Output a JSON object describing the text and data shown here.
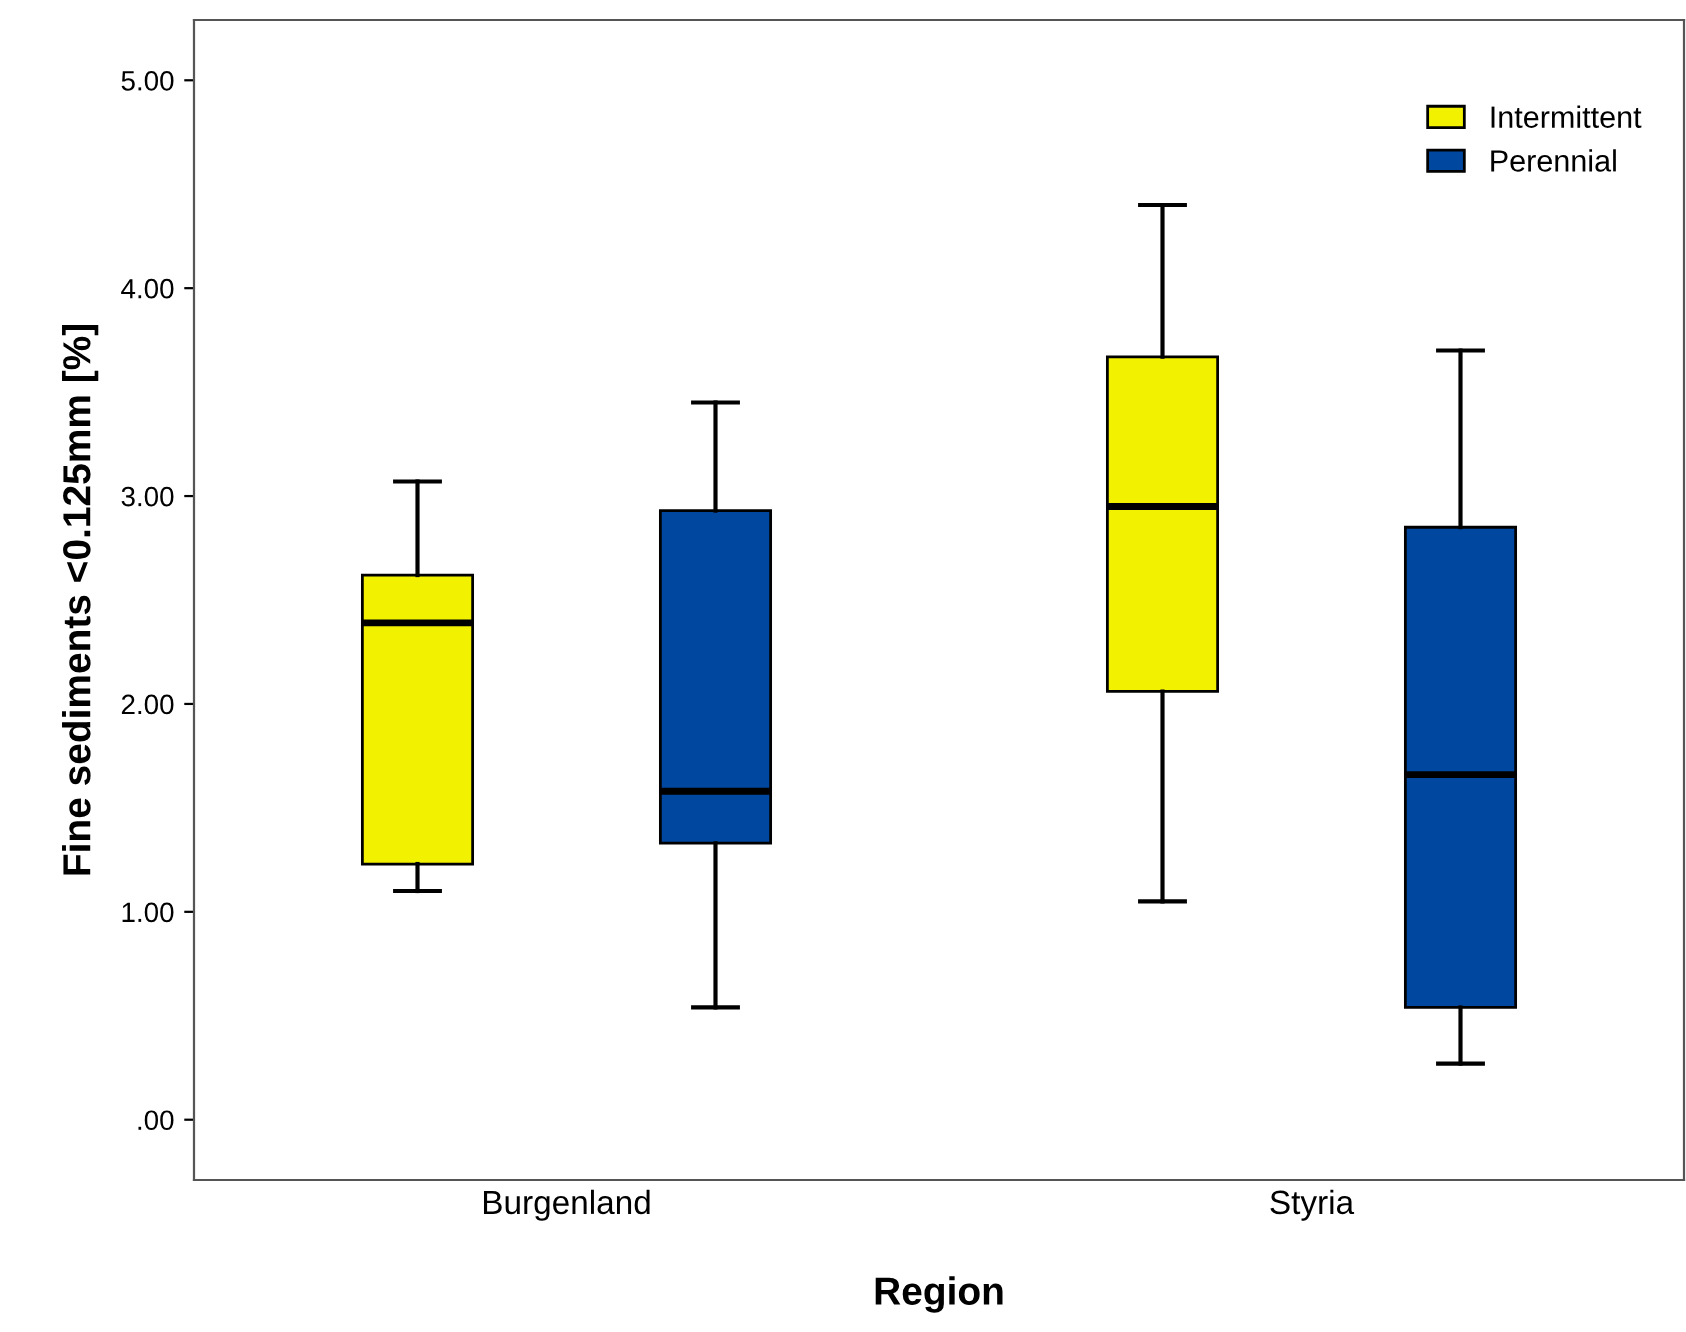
{
  "chart_data": {
    "type": "box",
    "xlabel": "Region",
    "ylabel": "Fine sediments <0.125mm [%]",
    "categories": [
      "Burgenland",
      "Styria"
    ],
    "series": [
      {
        "name": "Intermittent",
        "color": "#f2f200",
        "boxes": [
          {
            "low": 1.1,
            "q1": 1.23,
            "median": 2.39,
            "q3": 2.62,
            "high": 3.07
          },
          {
            "low": 1.05,
            "q1": 2.06,
            "median": 2.95,
            "q3": 3.67,
            "high": 4.4
          }
        ]
      },
      {
        "name": "Perennial",
        "color": "#0047a0",
        "boxes": [
          {
            "low": 0.54,
            "q1": 1.33,
            "median": 1.58,
            "q3": 2.93,
            "high": 3.45
          },
          {
            "low": 0.27,
            "q1": 0.54,
            "median": 1.66,
            "q3": 2.85,
            "high": 3.7
          }
        ]
      }
    ],
    "ylim": [
      -0.29,
      5.29
    ],
    "yticks": [
      {
        "value": 0,
        "label": ".00"
      },
      {
        "value": 1,
        "label": "1.00"
      },
      {
        "value": 2,
        "label": "2.00"
      },
      {
        "value": 3,
        "label": "3.00"
      },
      {
        "value": 4,
        "label": "4.00"
      },
      {
        "value": 5,
        "label": "5.00"
      }
    ],
    "grid": false,
    "legend": "top right"
  }
}
